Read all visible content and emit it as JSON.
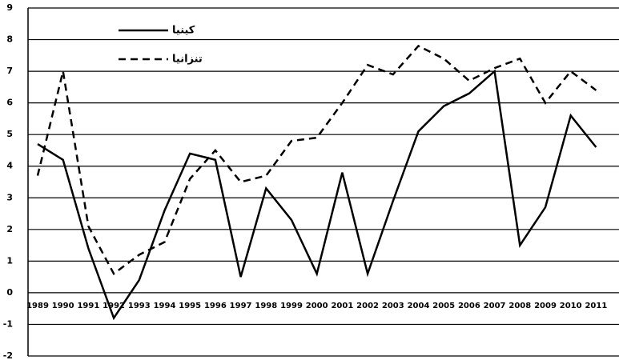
{
  "chart_data": {
    "type": "line",
    "categories": [
      "1989",
      "1990",
      "1991",
      "1992",
      "1993",
      "1994",
      "1995",
      "1996",
      "1997",
      "1998",
      "1999",
      "2000",
      "2001",
      "2002",
      "2003",
      "2004",
      "2005",
      "2006",
      "2007",
      "2008",
      "2009",
      "2010",
      "2011"
    ],
    "series": [
      {
        "name": "كينيا",
        "color": "#000000",
        "dash": false,
        "values": [
          4.7,
          4.2,
          1.4,
          -0.8,
          0.4,
          2.6,
          4.4,
          4.2,
          0.5,
          3.3,
          2.3,
          0.6,
          3.8,
          0.6,
          2.9,
          5.1,
          5.9,
          6.3,
          7.0,
          1.5,
          2.7,
          5.6,
          4.6
        ]
      },
      {
        "name": "تنزانيا",
        "color": "#000000",
        "dash": true,
        "values": [
          3.7,
          7.0,
          2.1,
          0.6,
          1.2,
          1.6,
          3.6,
          4.5,
          3.5,
          3.7,
          4.8,
          4.9,
          6.0,
          7.2,
          6.9,
          7.8,
          7.4,
          6.7,
          7.1,
          7.4,
          6.0,
          7.0,
          6.4
        ]
      }
    ],
    "ylim": [
      -2,
      9
    ],
    "yticks": [
      -2,
      -1,
      0,
      1,
      2,
      3,
      4,
      5,
      6,
      7,
      8,
      9
    ],
    "grid": true
  }
}
